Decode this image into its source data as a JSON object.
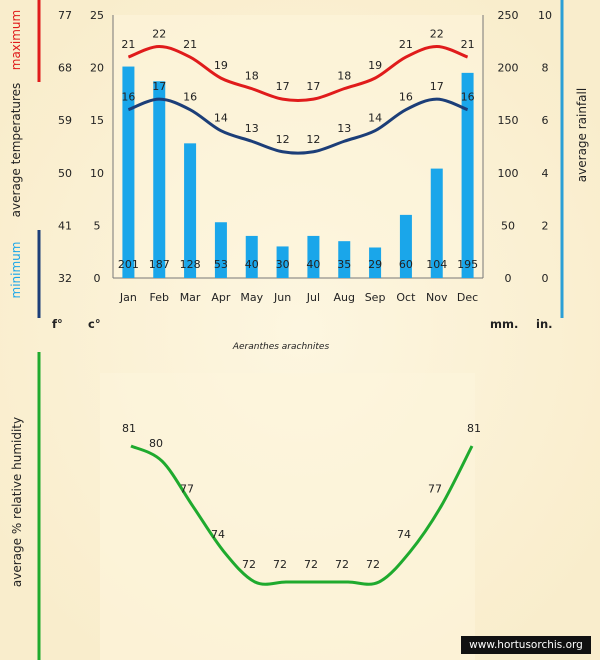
{
  "chart_data": [
    {
      "type": "bar+line",
      "name": "climate",
      "months": [
        "Jan",
        "Feb",
        "Mar",
        "Apr",
        "May",
        "Jun",
        "Jul",
        "Aug",
        "Sep",
        "Oct",
        "Nov",
        "Dec"
      ],
      "max_temp_c": [
        21,
        22,
        21,
        19,
        18,
        17,
        17,
        18,
        19,
        21,
        22,
        21
      ],
      "min_temp_c": [
        16,
        17,
        16,
        14,
        13,
        12,
        12,
        13,
        14,
        16,
        17,
        16
      ],
      "rainfall_mm": [
        201,
        187,
        128,
        53,
        40,
        30,
        40,
        35,
        29,
        60,
        104,
        195
      ],
      "celsius_ticks": [
        "25",
        "20",
        "15",
        "10",
        "5",
        "0"
      ],
      "fahrenheit_ticks": [
        "77",
        "68",
        "59",
        "50",
        "41",
        "32"
      ],
      "mm_ticks": [
        "250",
        "200",
        "150",
        "100",
        "50",
        "0"
      ],
      "inch_ticks": [
        "10",
        "8",
        "6",
        "4",
        "2",
        "0"
      ],
      "celsius_range": [
        0,
        25
      ],
      "mm_range": [
        0,
        250
      ],
      "left_label_top": "maximum",
      "left_label_mid": "average  temperatures",
      "left_label_bottom": "minimum",
      "right_label": "average  rainfall",
      "unit_f": "f°",
      "unit_c": "c°",
      "unit_mm": "mm.",
      "unit_in": "in.",
      "species": "Aeranthes arachnites",
      "colors": {
        "max": "#e01b1b",
        "min": "#1c3e78",
        "bar": "#1aa6ea",
        "right_rule": "#2a9fd6"
      }
    },
    {
      "type": "line",
      "name": "humidity",
      "months": [
        "Jan",
        "Feb",
        "Mar",
        "Apr",
        "May",
        "Jun",
        "Jul",
        "Aug",
        "Sep",
        "Oct",
        "Nov",
        "Dec"
      ],
      "values": [
        81,
        80,
        77,
        74,
        72,
        72,
        72,
        72,
        72,
        74,
        77,
        81
      ],
      "ylabel": "average %  relative humidity",
      "color": "#1faa2e"
    }
  ],
  "watermark": "www.hortusorchis.org"
}
